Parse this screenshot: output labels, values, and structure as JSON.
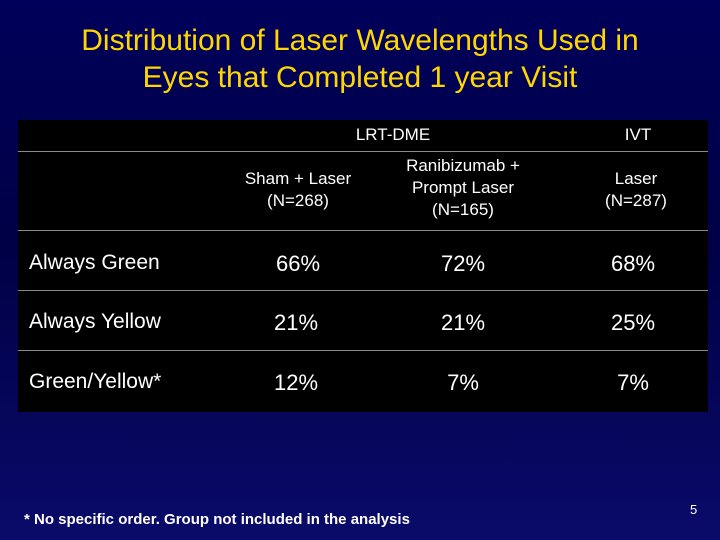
{
  "slide": {
    "title_line1": "Distribution of Laser Wavelengths Used in",
    "title_line2": "Eyes that Completed 1 year Visit",
    "footnote": "* No specific order. Group not included in the analysis",
    "page_number": "5",
    "colors": {
      "background": "#000050",
      "title": "#ffd700",
      "table_background": "#000000",
      "text": "#ffffff"
    }
  },
  "table": {
    "group_headers": {
      "lrt_dme": "LRT-DME",
      "ivt": "IVT"
    },
    "columns": [
      {
        "line1": "Sham + Laser",
        "line2": "(N=268)"
      },
      {
        "line1": "Ranibizumab +",
        "line2": "Prompt Laser",
        "line3": "(N=165)"
      },
      {
        "line1": "Laser",
        "line2": "(N=287)"
      }
    ],
    "rows": [
      {
        "label": "Always Green",
        "values": [
          "66%",
          "72%",
          "68%"
        ]
      },
      {
        "label": "Always Yellow",
        "values": [
          "21%",
          "21%",
          "25%"
        ]
      },
      {
        "label": "Green/Yellow*",
        "values": [
          "12%",
          "7%",
          "7%"
        ]
      }
    ]
  }
}
